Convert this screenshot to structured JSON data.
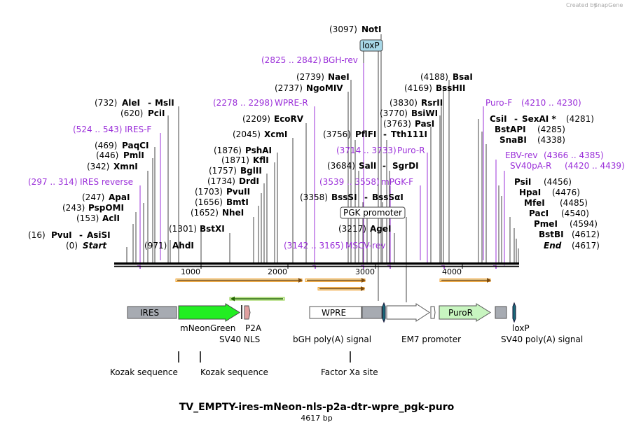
{
  "credit": "Created by",
  "credit_brand": "SnapGene",
  "title": "TV_EMPTY-ires-mNeon-nls-p2a-dtr-wpre_pgk-puro",
  "subtitle": "4617 bp",
  "axis_ticks": [
    "1000",
    "2000",
    "3000",
    "4000"
  ],
  "left_sites": [
    {
      "pos": "(732)",
      "name": "AleI",
      "sep": "-",
      "name2": "MslI"
    },
    {
      "pos": "(620)",
      "name": "PciI"
    },
    {
      "pos": "(469)",
      "name": "PaqCI"
    },
    {
      "pos": "(446)",
      "name": "PmlI"
    },
    {
      "pos": "(342)",
      "name": "XmnI"
    },
    {
      "pos": "(247)",
      "name": "ApaI"
    },
    {
      "pos": "(243)",
      "name": "PspOMI"
    },
    {
      "pos": "(153)",
      "name": "AclI"
    },
    {
      "pos": "(16)",
      "name": "PvuI",
      "sep": "-",
      "name2": "AsiSI"
    },
    {
      "pos": "(0)",
      "name": "Start"
    },
    {
      "pos": "(971)",
      "name": "AhdI"
    },
    {
      "pos": "(1301)",
      "name": "BstXI"
    }
  ],
  "mid_sites": [
    {
      "pos": "(2209)",
      "name": "EcoRV"
    },
    {
      "pos": "(2045)",
      "name": "XcmI"
    },
    {
      "pos": "(1876)",
      "name": "PshAI"
    },
    {
      "pos": "(1871)",
      "name": "KflI"
    },
    {
      "pos": "(1757)",
      "name": "BglII"
    },
    {
      "pos": "(1734)",
      "name": "DrdI"
    },
    {
      "pos": "(1703)",
      "name": "PvuII"
    },
    {
      "pos": "(1656)",
      "name": "BmtI"
    },
    {
      "pos": "(1652)",
      "name": "NheI"
    }
  ],
  "center_sites": [
    {
      "pos": "(3097)",
      "name": "NotI"
    },
    {
      "pos": "(2739)",
      "name": "NaeI"
    },
    {
      "pos": "(2737)",
      "name": "NgoMIV"
    },
    {
      "pos": "(3756)",
      "name": "PflFI",
      "sep": "-",
      "name2": "Tth111I"
    },
    {
      "pos": "(3684)",
      "name": "SalI",
      "sep": "-",
      "name2": "SgrDI"
    },
    {
      "pos": "(3358)",
      "name": "BssSI",
      "sep": "-",
      "name2": "BssSαI"
    },
    {
      "pos": "(3217)",
      "name": "AgeI"
    }
  ],
  "right_sites": [
    {
      "pos": "(4188)",
      "name": "BsaI"
    },
    {
      "pos": "(4169)",
      "name": "BssHII"
    },
    {
      "pos": "(3830)",
      "name": "RsrII"
    },
    {
      "pos": "(3770)",
      "name": "BsiWI"
    },
    {
      "pos": "(3763)",
      "name": "PasI"
    },
    {
      "name": "CsiI",
      "sep": "-",
      "name2": "SexAI *",
      "pos": "(4281)"
    },
    {
      "name": "BstAPI",
      "pos": "(4285)"
    },
    {
      "name": "SnaBI",
      "pos": "(4338)"
    },
    {
      "name": "PsiI",
      "pos": "(4456)"
    },
    {
      "name": "HpaI",
      "pos": "(4476)"
    },
    {
      "name": "MfeI",
      "pos": "(4485)"
    },
    {
      "name": "PacI",
      "pos": "(4540)"
    },
    {
      "name": "PmeI",
      "pos": "(4594)"
    },
    {
      "name": "BstBI",
      "pos": "(4612)"
    },
    {
      "name": "End",
      "pos": "(4617)"
    }
  ],
  "primers": [
    {
      "name": "IRES-F",
      "range": "(524 .. 543)"
    },
    {
      "name": "IRES reverse",
      "range": "(297 .. 314)"
    },
    {
      "name": "WPRE-R",
      "range": "(2278 .. 2298)"
    },
    {
      "name": "BGH-rev",
      "range": "(2825 .. 2842)"
    },
    {
      "name": "Puro-R",
      "range": "(3714 .. 3733)"
    },
    {
      "name": "mPGK-F",
      "range": "(3539 .. 3558)"
    },
    {
      "name": "MSCV-rev",
      "range": "(3142 .. 3165)"
    },
    {
      "name": "Puro-F",
      "range": "(4210 .. 4230)"
    },
    {
      "name": "EBV-rev",
      "range": "(4366 .. 4385)"
    },
    {
      "name": "SV40pA-R",
      "range": "(4420 .. 4439)"
    }
  ],
  "boxed_features": {
    "loxp_top": "loxP",
    "pgk_promoter": "PGK promoter"
  },
  "features": {
    "ires": "IRES",
    "wpre": "WPRE",
    "puror": "PuroR",
    "mneongreen": "mNeonGreen",
    "p2a": "P2A",
    "sv40_nls": "SV40 NLS",
    "bgh": "bGH poly(A) signal",
    "em7": "EM7 promoter",
    "sv40_polya": "SV40 poly(A) signal",
    "loxp_bottom": "loxP",
    "kozak1": "Kozak sequence",
    "kozak2": "Kozak sequence",
    "factor_xa": "Factor Xa site"
  },
  "colors": {
    "primer": "#9b30d9",
    "orf_arrow": "#f0a030",
    "mneon": "#22ee22",
    "puror": "#c8f5c0",
    "grey_box": "#a7abb2",
    "loxp_fill": "#a8d8e8"
  }
}
